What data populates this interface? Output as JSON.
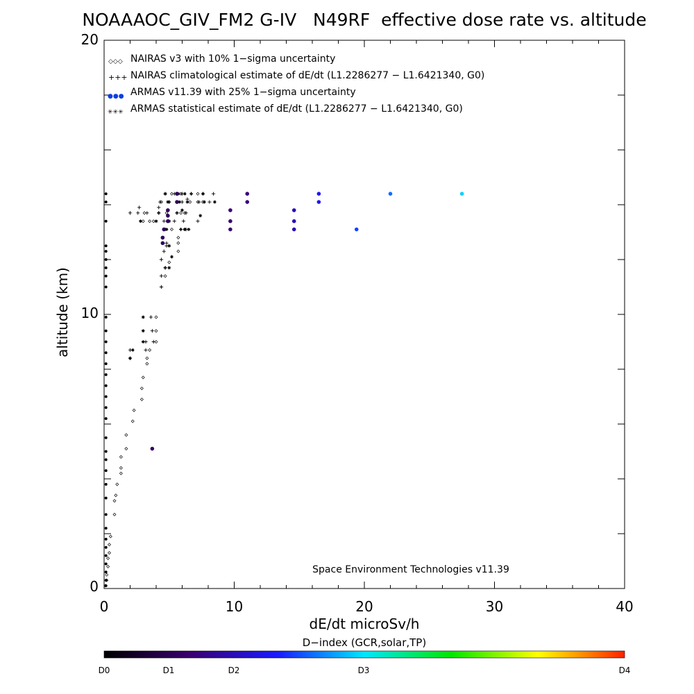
{
  "chart_data": {
    "type": "scatter",
    "title": "NOAAAOC_GIV_FM2 G-IV   N49RF  effective dose rate vs. altitude",
    "xlabel": "dE/dt microSv/h",
    "ylabel": "altitude (km)",
    "xlim": [
      0,
      40
    ],
    "ylim": [
      0,
      20
    ],
    "xticks": [
      "0",
      "10",
      "20",
      "30",
      "40"
    ],
    "yticks": [
      "0",
      "10",
      "20"
    ],
    "legend_placement": "top-left",
    "legend": [
      {
        "marker": "◇◇◇",
        "label": "NAIRAS v3 with 10% 1−sigma uncertainty"
      },
      {
        "marker": "+++",
        "label": "NAIRAS climatological estimate of dE/dt (L1.2286277 − L1.6421340, G0)"
      },
      {
        "marker": "●●●",
        "label": "ARMAS v11.39 with 25% 1−sigma uncertainty"
      },
      {
        "marker": "✳✳✳",
        "label": "ARMAS statistical estimate of dE/dt (L1.2286277 − L1.6421340, G0)"
      }
    ],
    "annotation": "Space Environment Technologies v11.39",
    "colorbar": {
      "title": "D−index (GCR,solar,TP)",
      "ticks": [
        {
          "label": "D0",
          "value": 0
        },
        {
          "label": "D1",
          "value": 1
        },
        {
          "label": "D2",
          "value": 2
        },
        {
          "label": "D3",
          "value": 3
        },
        {
          "label": "D4",
          "value": 4
        }
      ],
      "gradient_colors": [
        "#000000",
        "#3a0070",
        "#1a1aff",
        "#00e6ff",
        "#00e600",
        "#ffff00",
        "#ff2000"
      ]
    },
    "series": [
      {
        "marker": "diamond",
        "points": [
          [
            0.1,
            0.1
          ],
          [
            0.2,
            0.3
          ],
          [
            0.2,
            0.5
          ],
          [
            0.3,
            0.8
          ],
          [
            0.3,
            1.1
          ],
          [
            0.4,
            1.3
          ],
          [
            0.4,
            1.6
          ],
          [
            0.5,
            1.9
          ],
          [
            0.8,
            2.7
          ],
          [
            0.8,
            3.2
          ],
          [
            0.9,
            3.4
          ],
          [
            1.0,
            3.8
          ],
          [
            1.3,
            4.2
          ],
          [
            1.3,
            4.4
          ],
          [
            1.3,
            4.8
          ],
          [
            1.7,
            5.1
          ],
          [
            1.7,
            5.6
          ],
          [
            2.2,
            6.1
          ],
          [
            2.3,
            6.5
          ],
          [
            2.9,
            6.9
          ],
          [
            2.9,
            7.3
          ],
          [
            3.0,
            7.7
          ],
          [
            3.3,
            8.2
          ],
          [
            3.3,
            8.4
          ],
          [
            3.5,
            8.7
          ],
          [
            4.0,
            9.0
          ],
          [
            4.0,
            9.4
          ],
          [
            4.0,
            9.9
          ],
          [
            4.7,
            11.4
          ],
          [
            4.7,
            11.7
          ],
          [
            5.0,
            11.9
          ],
          [
            5.7,
            12.3
          ],
          [
            5.7,
            12.6
          ],
          [
            5.7,
            12.8
          ],
          [
            4.7,
            13.1
          ],
          [
            5.2,
            13.1
          ],
          [
            5.9,
            13.1
          ],
          [
            6.2,
            13.1
          ],
          [
            3.0,
            13.4
          ],
          [
            3.5,
            13.4
          ],
          [
            3.8,
            13.4
          ],
          [
            5.6,
            13.7
          ],
          [
            5.9,
            13.7
          ],
          [
            6.2,
            13.7
          ],
          [
            3.1,
            13.7
          ],
          [
            4.2,
            13.7
          ],
          [
            4.8,
            13.7
          ],
          [
            4.4,
            14.1
          ],
          [
            5.0,
            14.1
          ],
          [
            6.6,
            14.1
          ],
          [
            7.2,
            14.1
          ],
          [
            7.6,
            14.1
          ],
          [
            5.2,
            14.4
          ],
          [
            5.9,
            14.4
          ],
          [
            6.7,
            14.4
          ],
          [
            7.2,
            14.4
          ]
        ]
      },
      {
        "marker": "plus",
        "points": [
          [
            2.0,
            8.4
          ],
          [
            2.0,
            8.7
          ],
          [
            3.2,
            8.7
          ],
          [
            3.2,
            9.0
          ],
          [
            3.8,
            9.0
          ],
          [
            3.7,
            9.4
          ],
          [
            3.6,
            9.9
          ],
          [
            4.4,
            11.0
          ],
          [
            4.4,
            11.4
          ],
          [
            4.7,
            11.7
          ],
          [
            4.4,
            12.0
          ],
          [
            4.6,
            12.3
          ],
          [
            4.8,
            12.5
          ],
          [
            4.8,
            12.6
          ],
          [
            4.6,
            13.1
          ],
          [
            5.9,
            13.1
          ],
          [
            6.3,
            13.1
          ],
          [
            4.6,
            13.4
          ],
          [
            5.4,
            13.4
          ],
          [
            6.1,
            13.4
          ],
          [
            7.2,
            13.4
          ],
          [
            2.0,
            13.7
          ],
          [
            2.6,
            13.7
          ],
          [
            3.3,
            13.7
          ],
          [
            4.2,
            13.7
          ],
          [
            5.6,
            13.7
          ],
          [
            6.3,
            13.7
          ],
          [
            2.7,
            13.9
          ],
          [
            4.2,
            13.9
          ],
          [
            4.3,
            14.1
          ],
          [
            5.0,
            14.1
          ],
          [
            5.6,
            14.1
          ],
          [
            6.0,
            14.1
          ],
          [
            7.3,
            14.1
          ],
          [
            8.1,
            14.1
          ],
          [
            4.7,
            14.4
          ],
          [
            5.4,
            14.4
          ],
          [
            6.0,
            14.4
          ],
          [
            6.7,
            14.4
          ],
          [
            7.6,
            14.4
          ],
          [
            8.4,
            14.4
          ],
          [
            6.4,
            14.2
          ]
        ]
      },
      {
        "marker": "asterisk",
        "points": [
          [
            2.0,
            8.4
          ],
          [
            2.2,
            8.7
          ],
          [
            3.0,
            9.0
          ],
          [
            3.0,
            9.4
          ],
          [
            3.0,
            9.9
          ],
          [
            5.0,
            11.7
          ],
          [
            5.2,
            12.1
          ],
          [
            5.0,
            12.5
          ],
          [
            4.8,
            13.1
          ],
          [
            6.2,
            13.1
          ],
          [
            6.5,
            13.1
          ],
          [
            2.8,
            13.4
          ],
          [
            4.0,
            13.4
          ],
          [
            5.0,
            13.4
          ],
          [
            7.4,
            13.6
          ],
          [
            6.0,
            13.8
          ],
          [
            4.9,
            14.1
          ],
          [
            5.8,
            14.1
          ],
          [
            6.4,
            14.1
          ],
          [
            7.7,
            14.1
          ],
          [
            8.5,
            14.1
          ],
          [
            4.7,
            14.4
          ],
          [
            5.7,
            14.4
          ],
          [
            6.2,
            14.4
          ],
          [
            7.6,
            14.4
          ]
        ]
      },
      {
        "marker": "dot",
        "points": [
          [
            0.1,
            0.1
          ],
          [
            0.1,
            0.3
          ],
          [
            0.1,
            0.6
          ],
          [
            0.1,
            0.9
          ],
          [
            0.1,
            1.2
          ],
          [
            0.1,
            1.5
          ],
          [
            0.1,
            1.8
          ],
          [
            0.1,
            2.2
          ],
          [
            0.1,
            2.7
          ],
          [
            0.1,
            3.3
          ],
          [
            0.1,
            3.8
          ],
          [
            0.1,
            4.3
          ],
          [
            0.1,
            4.7
          ],
          [
            0.1,
            5.0
          ],
          [
            0.1,
            5.5
          ],
          [
            0.1,
            6.2
          ],
          [
            0.1,
            6.6
          ],
          [
            0.1,
            7.0
          ],
          [
            0.1,
            7.4
          ],
          [
            0.1,
            7.8
          ],
          [
            0.1,
            8.2
          ],
          [
            0.1,
            8.6
          ],
          [
            0.1,
            9.0
          ],
          [
            0.1,
            9.4
          ],
          [
            0.1,
            9.9
          ],
          [
            0.1,
            11.0
          ],
          [
            0.1,
            11.4
          ],
          [
            0.1,
            11.7
          ],
          [
            0.1,
            12.0
          ],
          [
            0.1,
            12.3
          ],
          [
            0.1,
            12.5
          ],
          [
            0.1,
            13.4
          ],
          [
            0.1,
            14.1
          ],
          [
            0.1,
            14.4
          ]
        ]
      },
      {
        "marker": "colored-dot",
        "points": [
          {
            "x": 3.7,
            "y": 5.1,
            "d": 0.9
          },
          {
            "x": 4.5,
            "y": 12.6,
            "d": 0.8
          },
          {
            "x": 4.5,
            "y": 12.8,
            "d": 0.8
          },
          {
            "x": 4.6,
            "y": 13.1,
            "d": 0.8
          },
          {
            "x": 4.9,
            "y": 13.4,
            "d": 0.8
          },
          {
            "x": 4.9,
            "y": 13.6,
            "d": 0.8
          },
          {
            "x": 4.9,
            "y": 13.8,
            "d": 0.8
          },
          {
            "x": 5.6,
            "y": 14.1,
            "d": 0.8
          },
          {
            "x": 5.6,
            "y": 14.4,
            "d": 0.8
          },
          {
            "x": 9.7,
            "y": 13.1,
            "d": 1.0
          },
          {
            "x": 9.7,
            "y": 13.4,
            "d": 1.0
          },
          {
            "x": 9.7,
            "y": 13.8,
            "d": 1.0
          },
          {
            "x": 11.0,
            "y": 14.1,
            "d": 1.1
          },
          {
            "x": 11.0,
            "y": 14.4,
            "d": 1.1
          },
          {
            "x": 14.6,
            "y": 13.1,
            "d": 1.5
          },
          {
            "x": 14.6,
            "y": 13.4,
            "d": 1.5
          },
          {
            "x": 14.6,
            "y": 13.8,
            "d": 1.5
          },
          {
            "x": 16.5,
            "y": 14.1,
            "d": 1.9
          },
          {
            "x": 16.5,
            "y": 14.4,
            "d": 1.9
          },
          {
            "x": 19.4,
            "y": 13.1,
            "d": 2.2
          },
          {
            "x": 22.0,
            "y": 14.4,
            "d": 2.4
          },
          {
            "x": 27.5,
            "y": 14.4,
            "d": 2.9
          }
        ]
      }
    ]
  }
}
